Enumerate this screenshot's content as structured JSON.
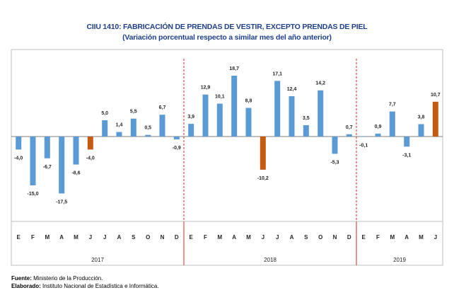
{
  "chart_data": {
    "type": "bar",
    "title": "CIIU 1410: FABRICACIÓN DE PRENDAS DE VESTIR, EXCEPTO PRENDAS DE PIEL",
    "subtitle": "(Variación porcentual respecto a similar mes del año anterior)",
    "months": [
      "E",
      "F",
      "M",
      "A",
      "M",
      "J",
      "J",
      "A",
      "S",
      "O",
      "N",
      "D",
      "E",
      "F",
      "M",
      "A",
      "M",
      "J",
      "J",
      "A",
      "S",
      "O",
      "N",
      "D",
      "E",
      "F",
      "M",
      "A",
      "M",
      "J"
    ],
    "years": [
      {
        "label": "2017",
        "count": 12
      },
      {
        "label": "2018",
        "count": 12
      },
      {
        "label": "2019",
        "count": 6
      }
    ],
    "values": [
      -4.0,
      -15.0,
      -6.7,
      -17.5,
      -8.6,
      -4.0,
      5.0,
      1.4,
      5.5,
      0.5,
      6.7,
      -0.9,
      3.9,
      12.9,
      10.1,
      18.7,
      8.8,
      -10.2,
      17.1,
      12.4,
      3.5,
      14.2,
      -5.3,
      0.7,
      -0.1,
      0.9,
      7.7,
      -3.1,
      3.8,
      10.7
    ],
    "labels": [
      "-4,0",
      "-15,0",
      "-6,7",
      "-17,5",
      "-8,6",
      "-4,0",
      "5,0",
      "1,4",
      "5,5",
      "0,5",
      "6,7",
      "-0,9",
      "3,9",
      "12,9",
      "10,1",
      "18,7",
      "8,8",
      "-10,2",
      "17,1",
      "12,4",
      "3,5",
      "14,2",
      "-5,3",
      "0,7",
      "-0,1",
      "0,9",
      "7,7",
      "-3,1",
      "3,8",
      "10,7"
    ],
    "highlight": [
      false,
      false,
      false,
      false,
      false,
      true,
      false,
      false,
      false,
      false,
      false,
      false,
      false,
      false,
      false,
      false,
      false,
      true,
      false,
      false,
      false,
      false,
      false,
      false,
      false,
      false,
      false,
      false,
      false,
      true
    ],
    "colors": {
      "bar": "#5b9bd5",
      "highlight": "#c55a11",
      "divider": "#e0262a",
      "axis": "#7f7f7f"
    }
  },
  "footer": {
    "source_label": "Fuente:",
    "source_text": " Ministerio de la Producción.",
    "prepared_label": "Elaborado:",
    "prepared_text": " Instituto Nacional de Estadística e Informática."
  }
}
